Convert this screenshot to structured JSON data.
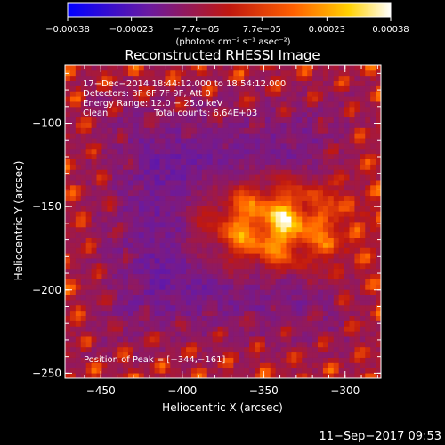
{
  "colorbar": {
    "ticks": [
      -0.00038,
      -0.00023,
      -7.7e-05,
      7.7e-05,
      0.00023,
      0.00038
    ],
    "tick_labels": [
      "−0.00038",
      "−0.00023",
      "−7.7e−05",
      "7.7e−05",
      "0.00023",
      "0.00038"
    ],
    "range": [
      -0.00038,
      0.00038
    ],
    "units": "(photons cm⁻² s⁻¹ asec⁻²)"
  },
  "chart_data": {
    "type": "heatmap",
    "title": "Reconstructed RHESSI Image",
    "xlabel": "Heliocentric X (arcsec)",
    "ylabel": "Heliocentric Y (arcsec)",
    "xlim": [
      -472,
      -278
    ],
    "ylim": [
      -253,
      -65
    ],
    "x_ticks": [
      -450,
      -400,
      -350,
      -300
    ],
    "x_tick_labels": [
      "−450",
      "−400",
      "−350",
      "−300"
    ],
    "y_ticks": [
      -250,
      -200,
      -150,
      -100
    ],
    "y_tick_labels": [
      "−250",
      "−200",
      "−150",
      "−100"
    ],
    "colormap": "blue-purple-red-yellow-white",
    "colormap_stops": [
      "#0000ff",
      "#6a1aa0",
      "#c01810",
      "#ff6000",
      "#ffd000",
      "#ffffff"
    ],
    "peak": {
      "x": -344,
      "y": -161
    },
    "value_range": [
      -0.00038,
      0.00038
    ],
    "annotations": {
      "time": "17−Dec−2014 18:44:12.000 to 18:54:12.000",
      "detectors": "Detectors: 3F 6F 7F 9F, Att 0",
      "energy": "Energy Range: 12.0 − 25.0 keV",
      "clean": "Clean",
      "counts": "Total counts: 6.64E+03",
      "peak_label": "Position of Peak = [−344,−161]"
    }
  },
  "footer": {
    "timestamp": "11−Sep−2017 09:53"
  }
}
